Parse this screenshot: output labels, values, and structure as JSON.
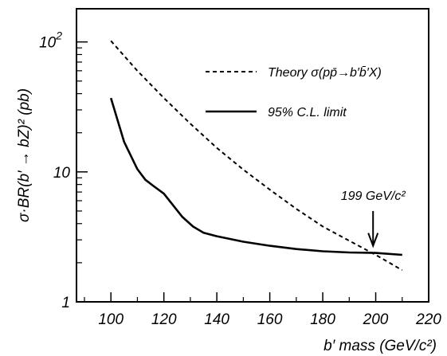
{
  "chart_data": {
    "type": "line",
    "title": "",
    "xlabel": "b′ mass (GeV/c²)",
    "ylabel": "σ·BR(b′ → bZ)² (pb)",
    "xlim": [
      87,
      220
    ],
    "ylim": [
      1,
      180
    ],
    "yscale": "log",
    "grid": false,
    "legend_position": "top-right",
    "xticks": [
      100,
      120,
      140,
      160,
      180,
      200,
      220
    ],
    "xtick_labels": [
      "100",
      "120",
      "140",
      "160",
      "180",
      "200",
      "220"
    ],
    "yticks": [
      1,
      10,
      100
    ],
    "ytick_labels": [
      "1",
      "10",
      "10²"
    ],
    "series": [
      {
        "name": "Theory σ(pp̄→b′b̄′X)",
        "style": "dashed",
        "color": "#000000",
        "x": [
          100,
          110,
          120,
          130,
          140,
          150,
          160,
          170,
          180,
          190,
          200,
          210
        ],
        "y": [
          102,
          60,
          37,
          23.5,
          15.3,
          10.4,
          7.3,
          5.2,
          3.8,
          2.95,
          2.3,
          1.75
        ]
      },
      {
        "name": "95% C.L. limit",
        "style": "solid",
        "color": "#000000",
        "x": [
          100,
          105,
          110,
          113,
          116,
          120,
          123,
          127,
          131,
          135,
          140,
          150,
          160,
          170,
          180,
          190,
          200,
          210
        ],
        "y": [
          37,
          17,
          10.5,
          8.7,
          7.8,
          6.8,
          5.7,
          4.5,
          3.8,
          3.4,
          3.2,
          2.9,
          2.7,
          2.55,
          2.45,
          2.4,
          2.38,
          2.3
        ]
      }
    ],
    "annotations": [
      {
        "text": "199 GeV/c²",
        "x": 199,
        "y_from": 5.0,
        "y_to": 2.7,
        "type": "arrow"
      }
    ]
  }
}
